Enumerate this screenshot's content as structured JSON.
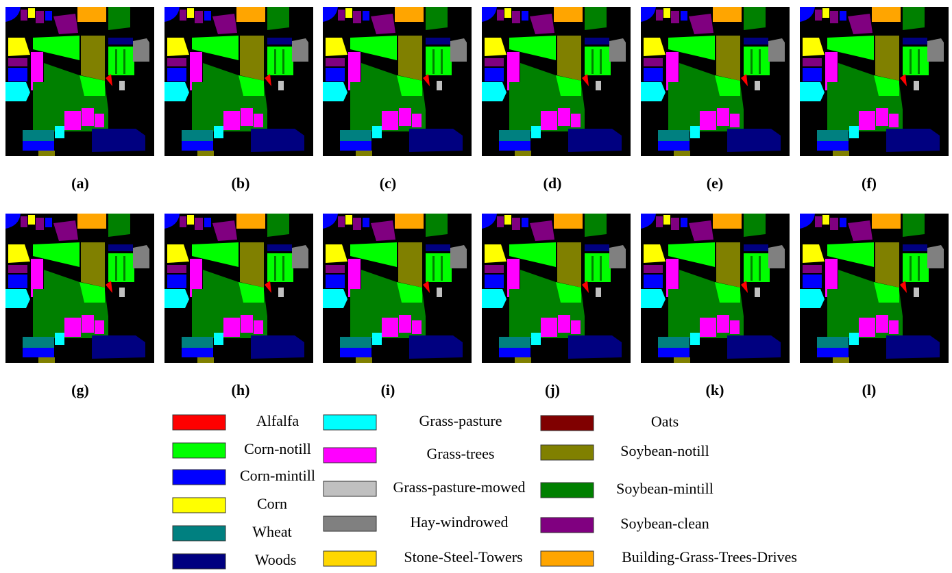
{
  "panels": [
    "(a)",
    "(b)",
    "(c)",
    "(d)",
    "(e)",
    "(f)",
    "(g)",
    "(h)",
    "(i)",
    "(j)",
    "(k)",
    "(l)"
  ],
  "legend": [
    {
      "label": "Alfalfa",
      "color": "#ff0000"
    },
    {
      "label": "Corn-notill",
      "color": "#00ff00"
    },
    {
      "label": "Corn-mintill",
      "color": "#0000ff"
    },
    {
      "label": "Corn",
      "color": "#ffff00"
    },
    {
      "label": "Wheat",
      "color": "#008080"
    },
    {
      "label": "Woods",
      "color": "#000080"
    },
    {
      "label": "Grass-pasture",
      "color": "#00ffff"
    },
    {
      "label": "Grass-trees",
      "color": "#ff00ff"
    },
    {
      "label": "Grass-pasture-mowed",
      "color": "#c0c0c0"
    },
    {
      "label": "Hay-windrowed",
      "color": "#808080"
    },
    {
      "label": "Stone-Steel-Towers",
      "color": "#ffd700"
    },
    {
      "label": "Oats",
      "color": "#800000"
    },
    {
      "label": "Soybean-notill",
      "color": "#808000"
    },
    {
      "label": "Soybean-mintill",
      "color": "#008000"
    },
    {
      "label": "Soybean-clean",
      "color": "#800080"
    },
    {
      "label": "Building-Grass-Trees-Drives",
      "color": "#ffa500"
    }
  ]
}
